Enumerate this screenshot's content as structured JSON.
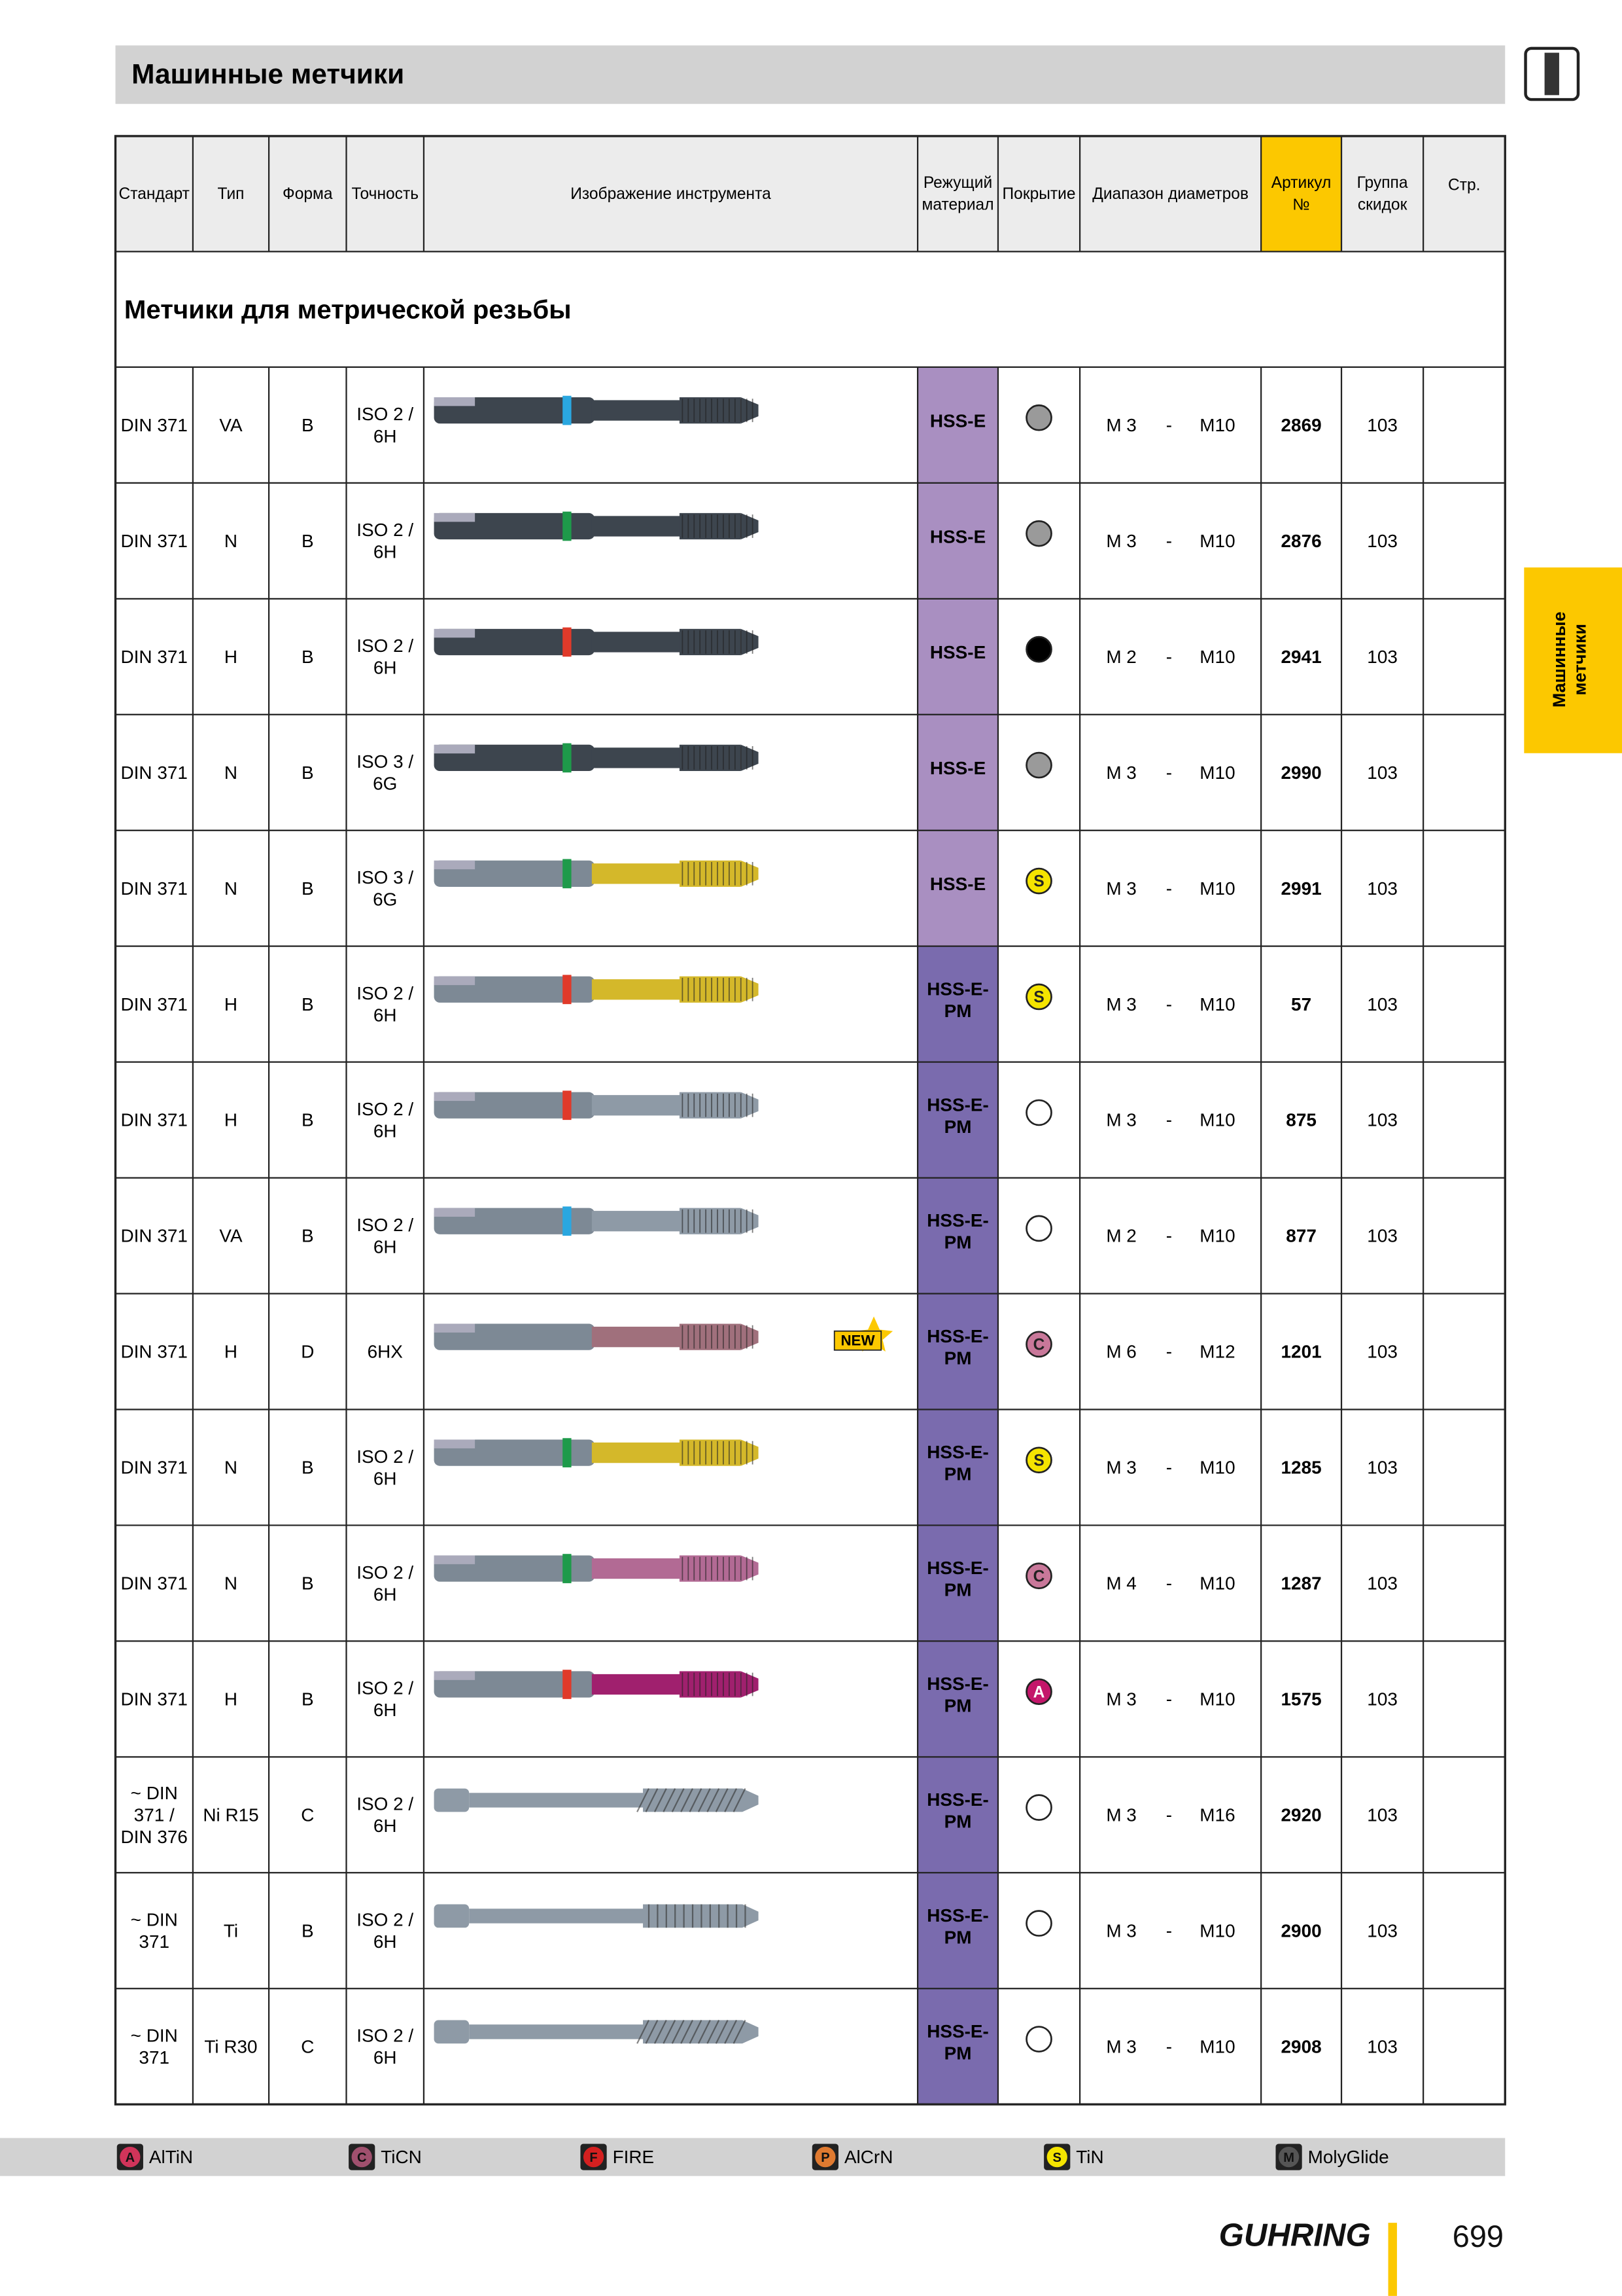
{
  "header": {
    "title": "Машинные метчики"
  },
  "side_tab": [
    "Машинные",
    "метчики"
  ],
  "table": {
    "columns": [
      [
        "Стандарт"
      ],
      [
        "Тип"
      ],
      [
        "Форма"
      ],
      [
        "Точность"
      ],
      [
        "Изображение инструмента"
      ],
      [
        "Режущий",
        "материал"
      ],
      [
        "Покрытие"
      ],
      [
        "Диапазон диаметров"
      ],
      [
        "Артикул",
        "№"
      ],
      [
        "Группа",
        "скидок"
      ],
      [
        "Стр."
      ]
    ],
    "section": "Метчики для метрической резьбы",
    "range_separator": "-",
    "rows": [
      {
        "standard": [
          "DIN 371"
        ],
        "type": "VA",
        "form": "B",
        "accuracy": [
          "ISO 2 /",
          "6H"
        ],
        "material": [
          "HSS-E"
        ],
        "material_color": "#a98fc1",
        "coating_color": "#9a9a9a",
        "range": [
          "M 3",
          "M10"
        ],
        "article": "2869",
        "group": "103",
        "tool": {
          "shank": "#3d454e",
          "band": "#2aa7e0",
          "body": "#3d454e",
          "shape": "straight"
        }
      },
      {
        "standard": [
          "DIN 371"
        ],
        "type": "N",
        "form": "B",
        "accuracy": [
          "ISO 2 /",
          "6H"
        ],
        "material": [
          "HSS-E"
        ],
        "material_color": "#a98fc1",
        "coating_color": "#9a9a9a",
        "range": [
          "M 3",
          "M10"
        ],
        "article": "2876",
        "group": "103",
        "tool": {
          "shank": "#3d454e",
          "band": "#1e9a4a",
          "body": "#3d454e",
          "shape": "straight"
        }
      },
      {
        "standard": [
          "DIN 371"
        ],
        "type": "H",
        "form": "B",
        "accuracy": [
          "ISO 2 /",
          "6H"
        ],
        "material": [
          "HSS-E"
        ],
        "material_color": "#a98fc1",
        "coating_color": "#000000",
        "range": [
          "M 2",
          "M10"
        ],
        "article": "2941",
        "group": "103",
        "tool": {
          "shank": "#3d454e",
          "band": "#e03a2a",
          "body": "#3d454e",
          "shape": "straight"
        }
      },
      {
        "standard": [
          "DIN 371"
        ],
        "type": "N",
        "form": "B",
        "accuracy": [
          "ISO 3 /",
          "6G"
        ],
        "material": [
          "HSS-E"
        ],
        "material_color": "#a98fc1",
        "coating_color": "#9a9a9a",
        "range": [
          "M 3",
          "M10"
        ],
        "article": "2990",
        "group": "103",
        "tool": {
          "shank": "#3d454e",
          "band": "#1e9a4a",
          "body": "#3d454e",
          "shape": "straight"
        }
      },
      {
        "standard": [
          "DIN 371"
        ],
        "type": "N",
        "form": "B",
        "accuracy": [
          "ISO 3 /",
          "6G"
        ],
        "material": [
          "HSS-E"
        ],
        "material_color": "#a98fc1",
        "coating": "S",
        "coating_color": "#f5e400",
        "range": [
          "M 3",
          "M10"
        ],
        "article": "2991",
        "group": "103",
        "tool": {
          "shank": "#7d8995",
          "band": "#1e9a4a",
          "body": "#d4b82a",
          "shape": "straight"
        }
      },
      {
        "standard": [
          "DIN 371"
        ],
        "type": "H",
        "form": "B",
        "accuracy": [
          "ISO 2 /",
          "6H"
        ],
        "material": [
          "HSS-E-",
          "PM"
        ],
        "material_color": "#7a6bae",
        "coating": "S",
        "coating_color": "#f5e400",
        "range": [
          "M 3",
          "M10"
        ],
        "article": "57",
        "group": "103",
        "tool": {
          "shank": "#7d8995",
          "band": "#e03a2a",
          "body": "#d4b82a",
          "shape": "straight"
        }
      },
      {
        "standard": [
          "DIN 371"
        ],
        "type": "H",
        "form": "B",
        "accuracy": [
          "ISO 2 /",
          "6H"
        ],
        "material": [
          "HSS-E-",
          "PM"
        ],
        "material_color": "#7a6bae",
        "coating_color": "#ffffff",
        "range": [
          "M 3",
          "M10"
        ],
        "article": "875",
        "group": "103",
        "tool": {
          "shank": "#7d8995",
          "band": "#e03a2a",
          "body": "#8e9aa6",
          "shape": "straight"
        }
      },
      {
        "standard": [
          "DIN 371"
        ],
        "type": "VA",
        "form": "B",
        "accuracy": [
          "ISO 2 /",
          "6H"
        ],
        "material": [
          "HSS-E-",
          "PM"
        ],
        "material_color": "#7a6bae",
        "coating_color": "#ffffff",
        "range": [
          "M 2",
          "M10"
        ],
        "article": "877",
        "group": "103",
        "tool": {
          "shank": "#7d8995",
          "band": "#2aa7e0",
          "body": "#8e9aa6",
          "shape": "straight"
        }
      },
      {
        "standard": [
          "DIN 371"
        ],
        "type": "H",
        "form": "D",
        "accuracy": [
          "6HX"
        ],
        "material": [
          "HSS-E-",
          "PM"
        ],
        "material_color": "#7a6bae",
        "coating": "C",
        "coating_color": "#c9789a",
        "range": [
          "M 6",
          "M12"
        ],
        "article": "1201",
        "group": "103",
        "badge": "NEW",
        "tool": {
          "shank": "#7d8995",
          "body": "#a0707c",
          "shape": "straight"
        }
      },
      {
        "standard": [
          "DIN 371"
        ],
        "type": "N",
        "form": "B",
        "accuracy": [
          "ISO 2 /",
          "6H"
        ],
        "material": [
          "HSS-E-",
          "PM"
        ],
        "material_color": "#7a6bae",
        "coating": "S",
        "coating_color": "#f5e400",
        "range": [
          "M 3",
          "M10"
        ],
        "article": "1285",
        "group": "103",
        "tool": {
          "shank": "#7d8995",
          "band": "#1e9a4a",
          "body": "#d4b82a",
          "shape": "straight"
        }
      },
      {
        "standard": [
          "DIN 371"
        ],
        "type": "N",
        "form": "B",
        "accuracy": [
          "ISO 2 /",
          "6H"
        ],
        "material": [
          "HSS-E-",
          "PM"
        ],
        "material_color": "#7a6bae",
        "coating": "C",
        "coating_color": "#c9789a",
        "range": [
          "M 4",
          "M10"
        ],
        "article": "1287",
        "group": "103",
        "tool": {
          "shank": "#7d8995",
          "band": "#1e9a4a",
          "body": "#b26a94",
          "shape": "straight"
        }
      },
      {
        "standard": [
          "DIN 371"
        ],
        "type": "H",
        "form": "B",
        "accuracy": [
          "ISO 2 /",
          "6H"
        ],
        "material": [
          "HSS-E-",
          "PM"
        ],
        "material_color": "#7a6bae",
        "coating": "A",
        "coating_color": "#c4166a",
        "range": [
          "M 3",
          "M10"
        ],
        "article": "1575",
        "group": "103",
        "tool": {
          "shank": "#7d8995",
          "band": "#e03a2a",
          "body": "#a0206e",
          "shape": "straight"
        }
      },
      {
        "standard": [
          "~ DIN",
          "371 /",
          "DIN 376"
        ],
        "type": "Ni R15",
        "form": "C",
        "accuracy": [
          "ISO 2 /",
          "6H"
        ],
        "material": [
          "HSS-E-",
          "PM"
        ],
        "material_color": "#7a6bae",
        "coating_color": "#ffffff",
        "range": [
          "M 3",
          "M16"
        ],
        "article": "2920",
        "group": "103",
        "tool": {
          "shank": "#8e9aa6",
          "body": "#8e9aa6",
          "shape": "spiral"
        }
      },
      {
        "standard": [
          "~ DIN",
          "371"
        ],
        "type": "Ti",
        "form": "B",
        "accuracy": [
          "ISO 2 /",
          "6H"
        ],
        "material": [
          "HSS-E-",
          "PM"
        ],
        "material_color": "#7a6bae",
        "coating_color": "#ffffff",
        "range": [
          "M 3",
          "M10"
        ],
        "article": "2900",
        "group": "103",
        "tool": {
          "shank": "#8e9aa6",
          "body": "#8e9aa6",
          "shape": "thin"
        }
      },
      {
        "standard": [
          "~ DIN",
          "371"
        ],
        "type": "Ti R30",
        "form": "C",
        "accuracy": [
          "ISO 2 /",
          "6H"
        ],
        "material": [
          "HSS-E-",
          "PM"
        ],
        "material_color": "#7a6bae",
        "coating_color": "#ffffff",
        "range": [
          "M 3",
          "M10"
        ],
        "article": "2908",
        "group": "103",
        "tool": {
          "shank": "#8e9aa6",
          "body": "#8e9aa6",
          "shape": "spiral"
        }
      }
    ]
  },
  "legend": [
    {
      "symbol": "A",
      "name": "AlTiN",
      "color": "#d0345a"
    },
    {
      "symbol": "C",
      "name": "TiCN",
      "color": "#a0506e"
    },
    {
      "symbol": "F",
      "name": "FIRE",
      "color": "#d42020"
    },
    {
      "symbol": "P",
      "name": "AlCrN",
      "color": "#e07a30"
    },
    {
      "symbol": "S",
      "name": "TiN",
      "color": "#f5e400"
    },
    {
      "symbol": "M",
      "name": "MolyGlide",
      "color": "#555555"
    }
  ],
  "footer": {
    "brand": "GUHRING",
    "page": "699"
  }
}
